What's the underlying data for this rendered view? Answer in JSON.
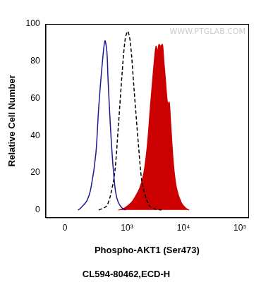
{
  "chart_data": {
    "type": "line",
    "x_label": "Phospho-AKT1 (Ser473)",
    "subtitle": "CL594-80462,ECD-H",
    "y_label": "Relative Cell Number",
    "watermark": "WWW.PTGLAB.COM",
    "xlim": [
      -140,
      140000
    ],
    "xticks": [
      0,
      {
        "value": 1000,
        "label": "10³"
      },
      {
        "value": 10000,
        "label": "10⁴"
      },
      {
        "value": 100000,
        "label": "10⁵"
      }
    ],
    "ylim": [
      -4,
      100
    ],
    "yticks": [
      0,
      20,
      40,
      60,
      80,
      100
    ],
    "grid": false,
    "series": [
      {
        "type": "line",
        "color": "#1a1a8c",
        "line_style": "solid",
        "x": [
          90,
          110,
          164,
          205,
          260,
          298,
          354,
          395,
          430,
          452,
          500,
          554,
          620,
          699,
          824,
          950
        ],
        "values": [
          0,
          1,
          5,
          12,
          30,
          55,
          80,
          91,
          85,
          70,
          45,
          25,
          10,
          4,
          1,
          0
        ]
      },
      {
        "type": "line",
        "color": "#000000",
        "line_style": "dashed",
        "x": [
          298,
          420,
          502,
          600,
          699,
          824,
          930,
          1032,
          1150,
          1336,
          1600,
          1847,
          2200,
          2544,
          3200,
          4110
        ],
        "values": [
          0,
          2,
          8,
          20,
          45,
          75,
          92,
          96,
          90,
          65,
          35,
          15,
          6,
          2,
          0.5,
          0
        ]
      },
      {
        "type": "area",
        "color": "#cc0000",
        "line_style": "solid",
        "x": [
          700,
          900,
          1200,
          1400,
          1700,
          2000,
          2310,
          2600,
          2900,
          3100,
          3290,
          3500,
          3700,
          3950,
          4250,
          4500,
          4800,
          5100,
          5310,
          5600,
          5900,
          6630,
          7500,
          9130,
          11000,
          12560
        ],
        "values": [
          0,
          1,
          4,
          7,
          12,
          20,
          35,
          55,
          72,
          82,
          88,
          85,
          89,
          88,
          89,
          80,
          70,
          60,
          57,
          58,
          48,
          25,
          12,
          4,
          1,
          0
        ]
      }
    ]
  }
}
